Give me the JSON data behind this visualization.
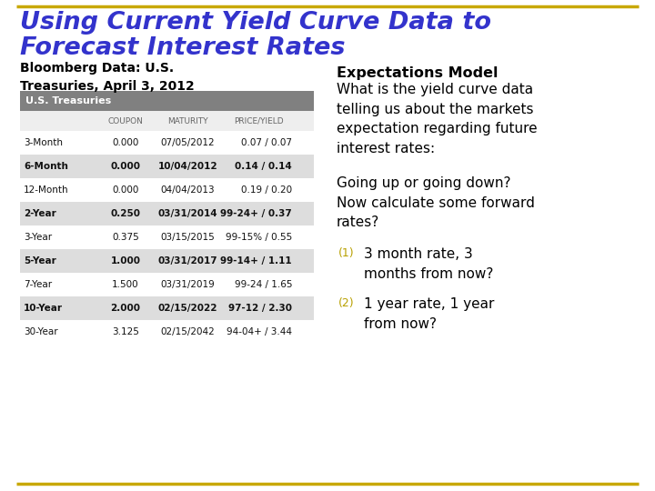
{
  "title_line1": "Using Current Yield Curve Data to",
  "title_line2": "Forecast Interest Rates",
  "title_color": "#3333CC",
  "subtitle_left": "Bloomberg Data: U.S.\nTreasuries, April 3, 2012",
  "table_header": "U.S. Treasuries",
  "table_col_headers": [
    "",
    "COUPON",
    "MATURITY",
    "PRICE/YIELD"
  ],
  "table_rows": [
    [
      "3-Month",
      "0.000",
      "07/05/2012",
      "0.07 / 0.07"
    ],
    [
      "6-Month",
      "0.000",
      "10/04/2012",
      "0.14 / 0.14"
    ],
    [
      "12-Month",
      "0.000",
      "04/04/2013",
      "0.19 / 0.20"
    ],
    [
      "2-Year",
      "0.250",
      "03/31/2014",
      "99-24+ / 0.37"
    ],
    [
      "3-Year",
      "0.375",
      "03/15/2015",
      "99-15% / 0.55"
    ],
    [
      "5-Year",
      "1.000",
      "03/31/2017",
      "99-14+ / 1.11"
    ],
    [
      "7-Year",
      "1.500",
      "03/31/2019",
      "99-24 / 1.65"
    ],
    [
      "10-Year",
      "2.000",
      "02/15/2022",
      "97-12 / 2.30"
    ],
    [
      "30-Year",
      "3.125",
      "02/15/2042",
      "94-04+ / 3.44"
    ]
  ],
  "shaded_rows": [
    1,
    3,
    5,
    7
  ],
  "right_title": "Expectations Model",
  "right_para1": "What is the yield curve data\ntelling us about the markets\nexpectation regarding future\ninterest rates:",
  "right_para2": "Going up or going down?\nNow calculate some forward\nrates?",
  "right_item1": "3 month rate, 3\nmonths from now?",
  "right_item2": "1 year rate, 1 year\nfrom now?",
  "bg_color": "#FFFFFF",
  "border_color": "#C8A800",
  "table_header_bg": "#808080",
  "table_header_fg": "#FFFFFF",
  "table_shaded_bg": "#DDDDDD",
  "table_unshaded_bg": "#FFFFFF",
  "table_colhdr_bg": "#EEEEEE",
  "table_col_header_color": "#666666",
  "num_color": "#B8A000"
}
